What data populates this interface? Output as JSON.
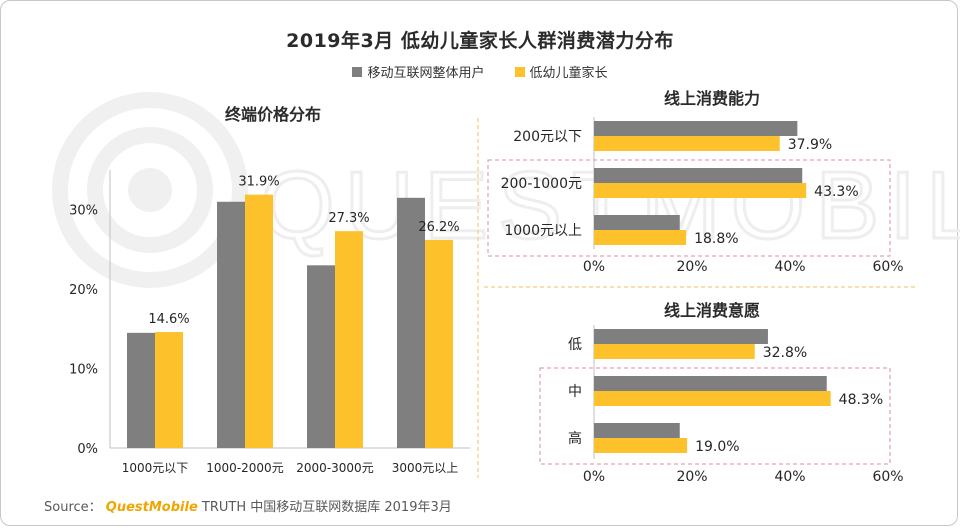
{
  "title": "2019年3月 低幼儿童家长人群消费潜力分布",
  "colors": {
    "gray": "#7f7f7f",
    "yellow": "#fdc12c",
    "axis": "#bfbfbf",
    "dash": "#d98ea4",
    "divider": "#f0c060",
    "text": "#262626"
  },
  "legend": [
    {
      "label": "移动互联网整体用户",
      "color": "#7f7f7f"
    },
    {
      "label": "低幼儿童家长",
      "color": "#fdc12c"
    }
  ],
  "source": {
    "prefix": "Source：",
    "brand": "QuestMobile",
    "suffix": "TRUTH 中国移动互联网数据库 2019年3月"
  },
  "watermark": "QUESTMOBILE",
  "chart_data": [
    {
      "type": "bar",
      "title": "终端价格分布",
      "categories": [
        "1000元以下",
        "1000-2000元",
        "2000-3000元",
        "3000元以上"
      ],
      "series": [
        {
          "name": "移动互联网整体用户",
          "values": [
            14.5,
            31.0,
            23.0,
            31.5
          ]
        },
        {
          "name": "低幼儿童家长",
          "values": [
            14.6,
            31.9,
            27.3,
            26.2
          ]
        }
      ],
      "data_labels": [
        "14.6%",
        "31.9%",
        "27.3%",
        "26.2%"
      ],
      "ylim": [
        0,
        35
      ],
      "yticks": [
        0,
        10,
        20,
        30
      ],
      "ytick_labels": [
        "0%",
        "10%",
        "20%",
        "30%"
      ],
      "xlabel": "",
      "ylabel": ""
    },
    {
      "type": "barh",
      "title": "线上消费能力",
      "categories": [
        "200元以下",
        "200-1000元",
        "1000元以上"
      ],
      "series": [
        {
          "name": "移动互联网整体用户",
          "values": [
            41.5,
            42.5,
            17.5
          ]
        },
        {
          "name": "低幼儿童家长",
          "values": [
            37.9,
            43.3,
            18.8
          ]
        }
      ],
      "data_labels": [
        "37.9%",
        "43.3%",
        "18.8%"
      ],
      "xlim": [
        0,
        60
      ],
      "xticks": [
        0,
        20,
        40,
        60
      ],
      "xtick_labels": [
        "0%",
        "20%",
        "40%",
        "60%"
      ],
      "highlight": [
        1,
        2
      ]
    },
    {
      "type": "barh",
      "title": "线上消费意愿",
      "categories": [
        "低",
        "中",
        "高"
      ],
      "series": [
        {
          "name": "移动互联网整体用户",
          "values": [
            35.5,
            47.5,
            17.5
          ]
        },
        {
          "name": "低幼儿童家长",
          "values": [
            32.8,
            48.3,
            19.0
          ]
        }
      ],
      "data_labels": [
        "32.8%",
        "48.3%",
        "19.0%"
      ],
      "xlim": [
        0,
        60
      ],
      "xticks": [
        0,
        20,
        40,
        60
      ],
      "xtick_labels": [
        "0%",
        "20%",
        "40%",
        "60%"
      ],
      "highlight": [
        1,
        2
      ]
    }
  ]
}
